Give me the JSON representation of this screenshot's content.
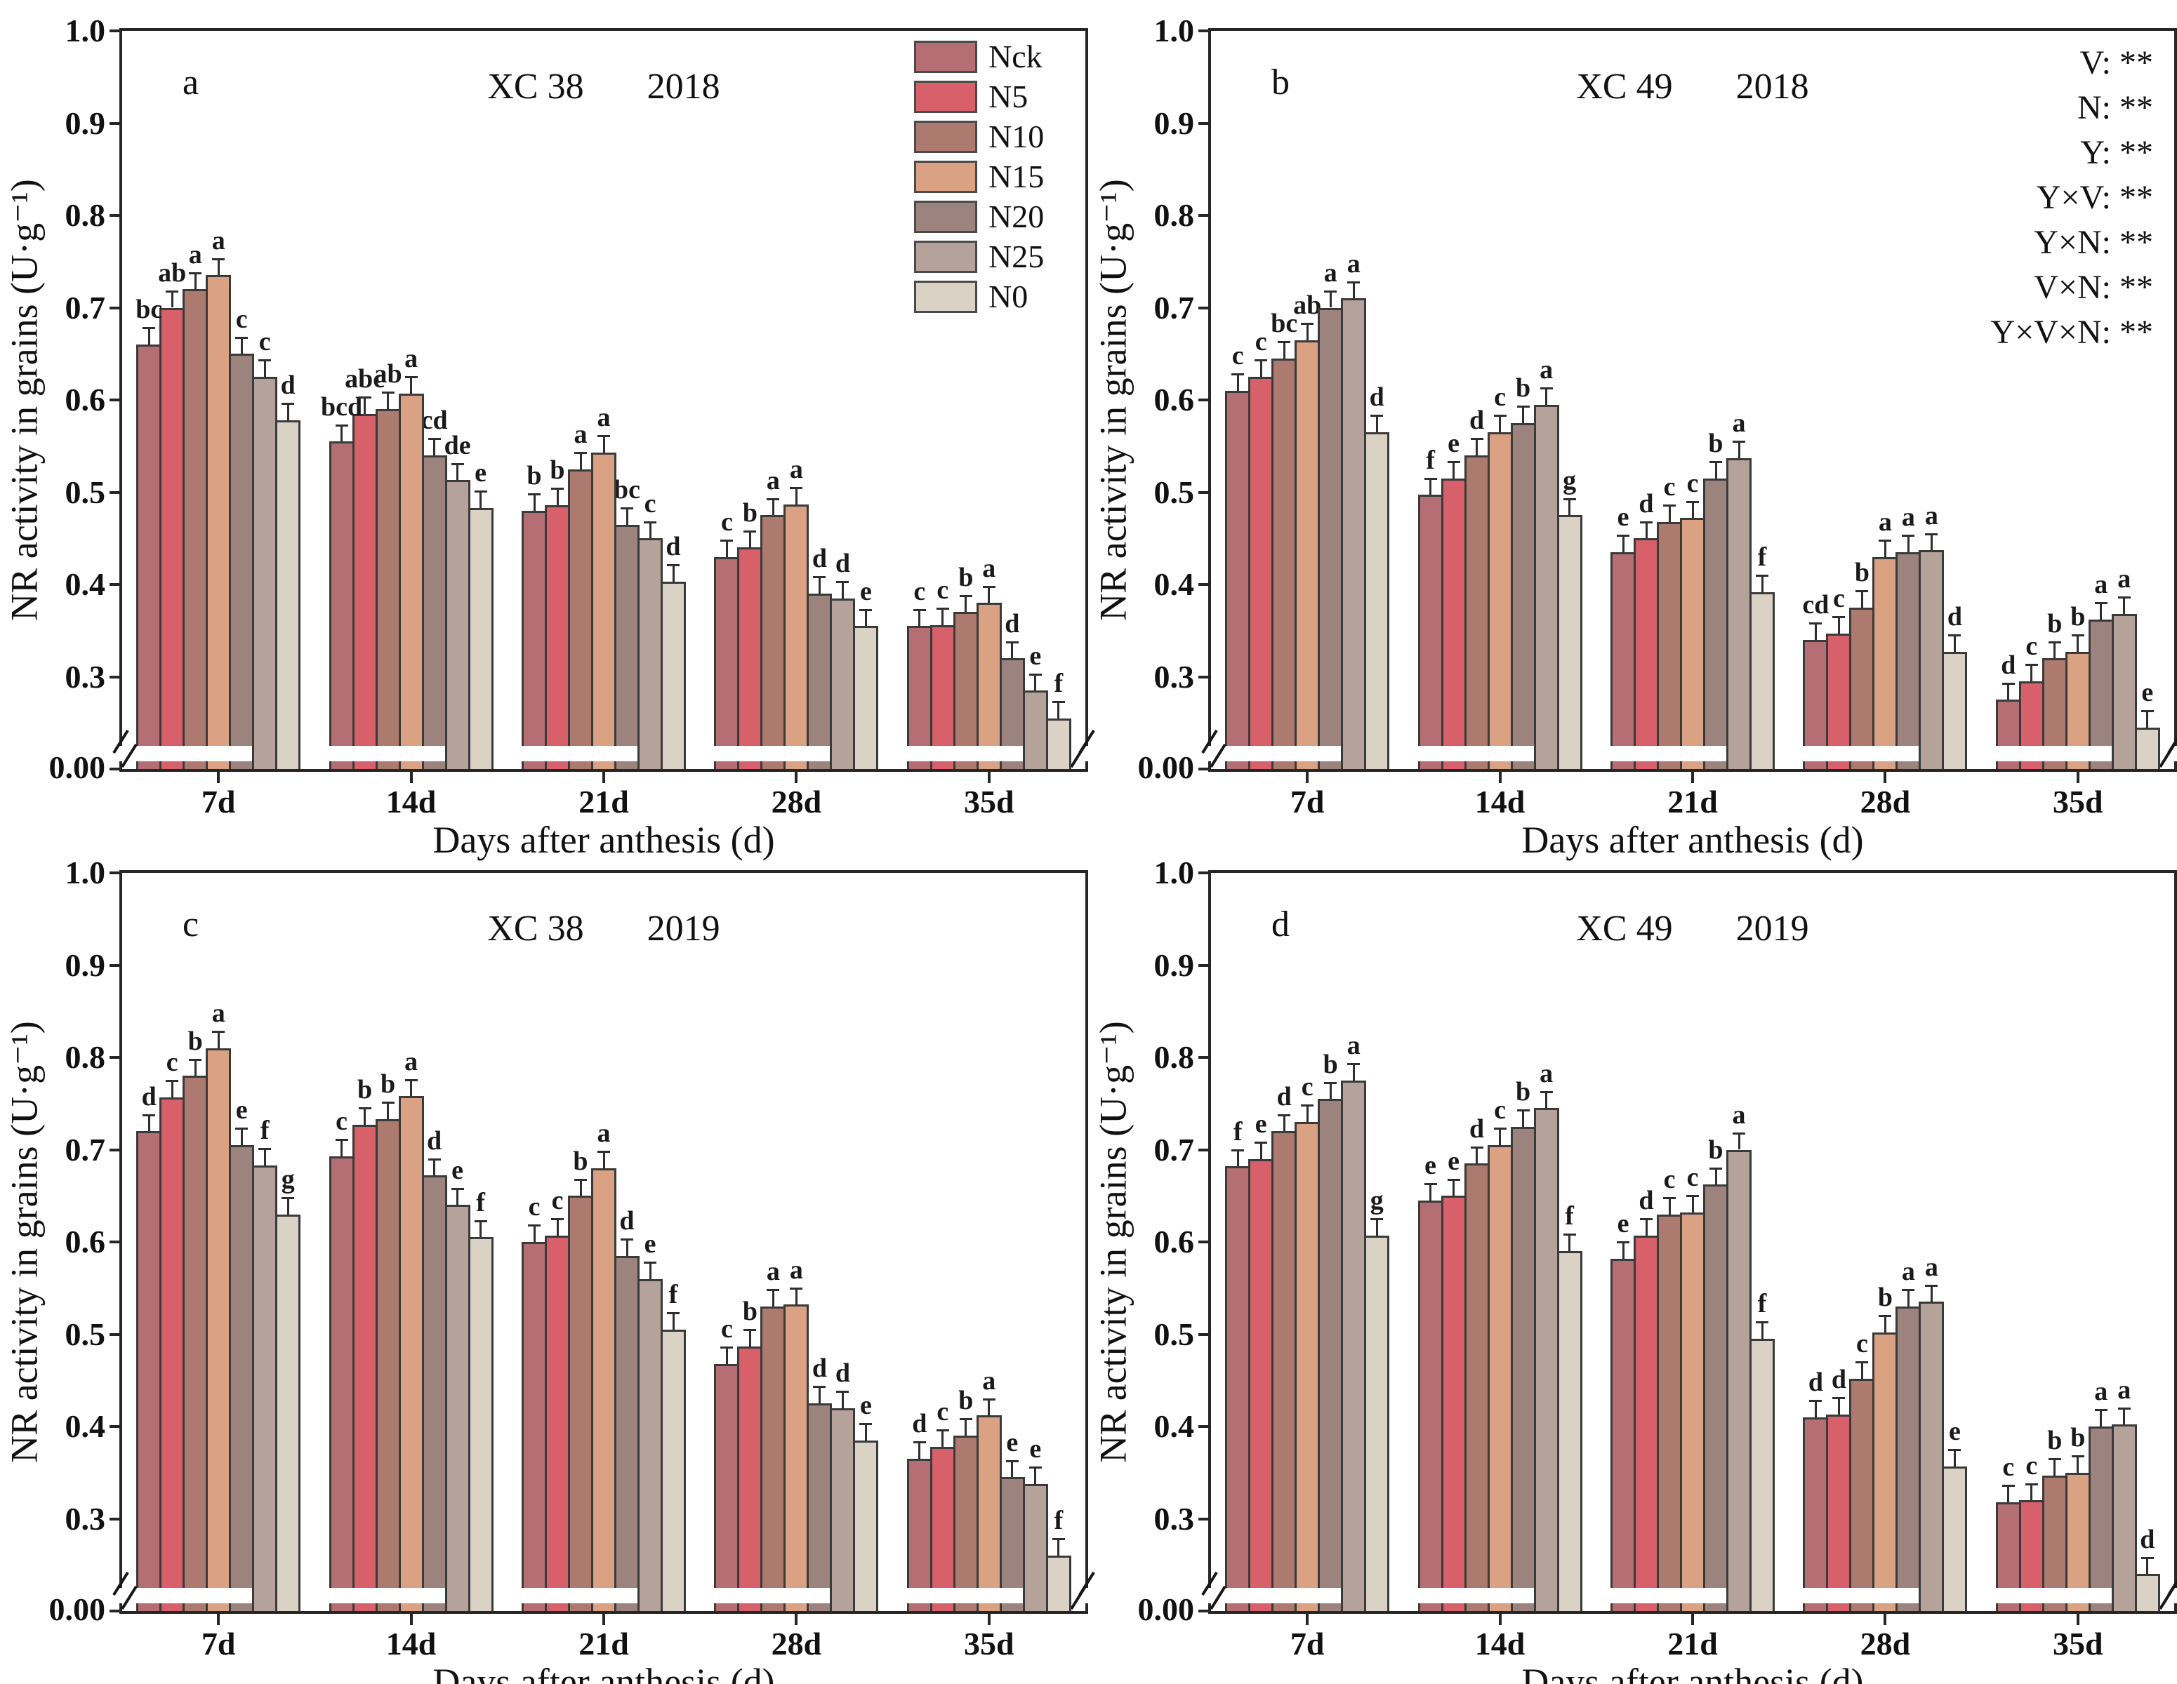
{
  "chart_data": {
    "type": "bar",
    "ylabel": "NR activity in grains (U·g⁻¹)",
    "xlabel": "Days after anthesis (d)",
    "categories": [
      "7d",
      "14d",
      "21d",
      "28d",
      "35d"
    ],
    "ytick_values": [
      1.0,
      0.9,
      0.8,
      0.7,
      0.6,
      0.5,
      0.4,
      0.3
    ],
    "ytick_labels": [
      "1.0",
      "0.9",
      "0.8",
      "0.7",
      "0.6",
      "0.5",
      "0.4",
      "0.3"
    ],
    "ybottom_label": "0.00",
    "ylim_display": [
      0.2,
      1.0
    ],
    "axis_break": true,
    "grid": false,
    "error_bar": 0.018,
    "legend_position": "top-right-inside-panel-a",
    "series_names": [
      "Nck",
      "N5",
      "N10",
      "N15",
      "N20",
      "N25",
      "N0"
    ],
    "series_colors": [
      "#b46e74",
      "#d8606a",
      "#ad7a70",
      "#daa183",
      "#9c837e",
      "#b5a29a",
      "#dbd2c6"
    ],
    "annotations": [
      "V: **",
      "N: **",
      "Y: **",
      "Y×V: **",
      "Y×N: **",
      "V×N: **",
      "Y×V×N: **"
    ],
    "panels": [
      {
        "id": "a",
        "cultivar": "XC 38",
        "year": "2018",
        "has_legend": true,
        "has_annotations": false,
        "groups": [
          {
            "category": "7d",
            "values": [
              0.66,
              0.7,
              0.72,
              0.735,
              0.65,
              0.625,
              0.578
            ],
            "letters": [
              "bc",
              "ab",
              "a",
              "a",
              "c",
              "c",
              "d"
            ]
          },
          {
            "category": "14d",
            "values": [
              0.555,
              0.585,
              0.59,
              0.607,
              0.54,
              0.513,
              0.483
            ],
            "letters": [
              "bcd",
              "abc",
              "ab",
              "a",
              "cd",
              "de",
              "e"
            ]
          },
          {
            "category": "21d",
            "values": [
              0.48,
              0.486,
              0.525,
              0.543,
              0.465,
              0.45,
              0.403
            ],
            "letters": [
              "b",
              "b",
              "a",
              "a",
              "bc",
              "c",
              "d"
            ]
          },
          {
            "category": "28d",
            "values": [
              0.43,
              0.44,
              0.475,
              0.487,
              0.39,
              0.385,
              0.355
            ],
            "letters": [
              "c",
              "b",
              "a",
              "a",
              "d",
              "d",
              "e"
            ]
          },
          {
            "category": "35d",
            "values": [
              0.355,
              0.356,
              0.37,
              0.38,
              0.32,
              0.285,
              0.255
            ],
            "letters": [
              "c",
              "c",
              "b",
              "a",
              "d",
              "e",
              "f"
            ]
          }
        ]
      },
      {
        "id": "b",
        "cultivar": "XC 49",
        "year": "2018",
        "has_legend": false,
        "has_annotations": true,
        "groups": [
          {
            "category": "7d",
            "values": [
              0.61,
              0.625,
              0.645,
              0.665,
              0.7,
              0.71,
              0.565
            ],
            "letters": [
              "c",
              "c",
              "bc",
              "ab",
              "a",
              "a",
              "d"
            ]
          },
          {
            "category": "14d",
            "values": [
              0.497,
              0.515,
              0.54,
              0.565,
              0.575,
              0.595,
              0.475
            ],
            "letters": [
              "f",
              "e",
              "d",
              "c",
              "b",
              "a",
              "g"
            ]
          },
          {
            "category": "21d",
            "values": [
              0.435,
              0.45,
              0.468,
              0.472,
              0.515,
              0.537,
              0.392
            ],
            "letters": [
              "e",
              "d",
              "c",
              "c",
              "b",
              "a",
              "f"
            ]
          },
          {
            "category": "28d",
            "values": [
              0.34,
              0.347,
              0.375,
              0.43,
              0.435,
              0.437,
              0.327
            ],
            "letters": [
              "cd",
              "c",
              "b",
              "a",
              "a",
              "a",
              "d"
            ]
          },
          {
            "category": "35d",
            "values": [
              0.275,
              0.295,
              0.32,
              0.327,
              0.362,
              0.368,
              0.245
            ],
            "letters": [
              "d",
              "c",
              "b",
              "b",
              "a",
              "a",
              "e"
            ]
          }
        ]
      },
      {
        "id": "c",
        "cultivar": "XC 38",
        "year": "2019",
        "has_legend": false,
        "has_annotations": false,
        "groups": [
          {
            "category": "7d",
            "values": [
              0.72,
              0.757,
              0.78,
              0.81,
              0.705,
              0.683,
              0.63
            ],
            "letters": [
              "d",
              "c",
              "b",
              "a",
              "e",
              "f",
              "g"
            ]
          },
          {
            "category": "14d",
            "values": [
              0.693,
              0.727,
              0.733,
              0.758,
              0.672,
              0.64,
              0.605
            ],
            "letters": [
              "c",
              "b",
              "b",
              "a",
              "d",
              "e",
              "f"
            ]
          },
          {
            "category": "21d",
            "values": [
              0.6,
              0.607,
              0.65,
              0.68,
              0.585,
              0.56,
              0.505
            ],
            "letters": [
              "c",
              "c",
              "b",
              "a",
              "d",
              "e",
              "f"
            ]
          },
          {
            "category": "28d",
            "values": [
              0.468,
              0.487,
              0.53,
              0.532,
              0.425,
              0.42,
              0.385
            ],
            "letters": [
              "c",
              "b",
              "a",
              "a",
              "d",
              "d",
              "e"
            ]
          },
          {
            "category": "35d",
            "values": [
              0.365,
              0.378,
              0.39,
              0.412,
              0.345,
              0.338,
              0.26
            ],
            "letters": [
              "d",
              "c",
              "b",
              "a",
              "e",
              "e",
              "f"
            ]
          }
        ]
      },
      {
        "id": "d",
        "cultivar": "XC 49",
        "year": "2019",
        "has_legend": false,
        "has_annotations": false,
        "groups": [
          {
            "category": "7d",
            "values": [
              0.682,
              0.69,
              0.72,
              0.73,
              0.755,
              0.775,
              0.607
            ],
            "letters": [
              "f",
              "e",
              "d",
              "c",
              "b",
              "a",
              "g"
            ]
          },
          {
            "category": "14d",
            "values": [
              0.645,
              0.65,
              0.685,
              0.705,
              0.725,
              0.745,
              0.59
            ],
            "letters": [
              "e",
              "e",
              "d",
              "c",
              "b",
              "a",
              "f"
            ]
          },
          {
            "category": "21d",
            "values": [
              0.582,
              0.607,
              0.63,
              0.632,
              0.662,
              0.7,
              0.495
            ],
            "letters": [
              "e",
              "d",
              "c",
              "c",
              "b",
              "a",
              "f"
            ]
          },
          {
            "category": "28d",
            "values": [
              0.41,
              0.413,
              0.452,
              0.502,
              0.53,
              0.535,
              0.357
            ],
            "letters": [
              "d",
              "d",
              "c",
              "b",
              "a",
              "a",
              "e"
            ]
          },
          {
            "category": "35d",
            "values": [
              0.318,
              0.32,
              0.347,
              0.35,
              0.4,
              0.402,
              0.24
            ],
            "letters": [
              "c",
              "c",
              "b",
              "b",
              "a",
              "a",
              "d"
            ]
          }
        ]
      }
    ]
  }
}
